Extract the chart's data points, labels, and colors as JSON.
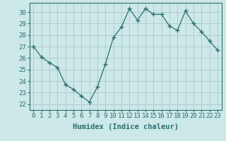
{
  "x": [
    0,
    1,
    2,
    3,
    4,
    5,
    6,
    7,
    8,
    9,
    10,
    11,
    12,
    13,
    14,
    15,
    16,
    17,
    18,
    19,
    20,
    21,
    22,
    23
  ],
  "y": [
    27.0,
    26.1,
    25.6,
    25.2,
    23.7,
    23.3,
    22.7,
    22.2,
    23.5,
    25.5,
    27.8,
    28.7,
    30.3,
    29.3,
    30.3,
    29.8,
    29.8,
    28.8,
    28.4,
    30.1,
    29.0,
    28.3,
    27.5,
    26.7
  ],
  "line_color": "#2d6e6e",
  "marker": "+",
  "marker_size": 4,
  "bg_color": "#cce8e8",
  "grid_color": "#b0cccc",
  "xlabel": "Humidex (Indice chaleur)",
  "xlim": [
    -0.5,
    23.5
  ],
  "ylim": [
    21.5,
    30.8
  ],
  "yticks": [
    22,
    23,
    24,
    25,
    26,
    27,
    28,
    29,
    30
  ],
  "xtick_labels": [
    "0",
    "1",
    "2",
    "3",
    "4",
    "5",
    "6",
    "7",
    "8",
    "9",
    "10",
    "11",
    "12",
    "13",
    "14",
    "15",
    "16",
    "17",
    "18",
    "19",
    "20",
    "21",
    "22",
    "23"
  ],
  "label_fontsize": 7.5,
  "tick_fontsize": 6.5
}
